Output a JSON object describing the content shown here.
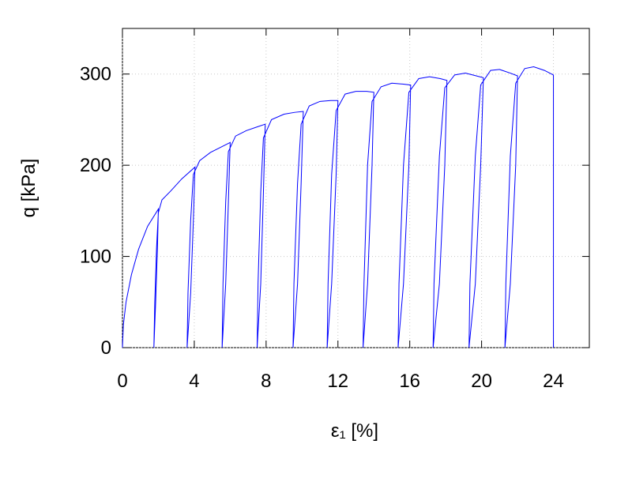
{
  "chart_data": {
    "type": "line",
    "xlabel": "ε₁ [%]",
    "ylabel": "q [kPa]",
    "color": "#0000ff",
    "xlim": [
      0,
      26
    ],
    "ylim": [
      0,
      350
    ],
    "xticks": [
      0,
      4,
      8,
      12,
      16,
      20,
      24
    ],
    "yticks": [
      0,
      100,
      200,
      300
    ],
    "grid": true,
    "x": [
      0,
      0.05,
      0.2,
      0.5,
      0.9,
      1.4,
      2.0,
      1.95,
      1.85,
      1.75,
      1.8,
      1.9,
      2.0,
      2.2,
      2.7,
      3.3,
      4.04,
      3.95,
      3.8,
      3.6,
      3.65,
      3.8,
      3.95,
      4.3,
      4.9,
      5.5,
      6.0,
      5.9,
      5.75,
      5.55,
      5.6,
      5.75,
      5.9,
      6.3,
      6.9,
      7.5,
      7.95,
      7.85,
      7.7,
      7.5,
      7.55,
      7.7,
      7.85,
      8.3,
      9.0,
      9.6,
      10.07,
      9.95,
      9.75,
      9.5,
      9.55,
      9.75,
      9.95,
      10.4,
      11.0,
      11.6,
      12.0,
      11.9,
      11.65,
      11.4,
      11.45,
      11.65,
      11.9,
      12.4,
      13.0,
      13.6,
      14.0,
      13.9,
      13.65,
      13.4,
      13.45,
      13.65,
      13.9,
      14.4,
      15.0,
      15.6,
      16.05,
      15.95,
      15.65,
      15.35,
      15.4,
      15.65,
      15.95,
      16.5,
      17.1,
      17.7,
      18.07,
      17.95,
      17.65,
      17.3,
      17.35,
      17.65,
      17.95,
      18.5,
      19.1,
      19.7,
      20.1,
      19.95,
      19.65,
      19.3,
      19.35,
      19.65,
      19.95,
      20.5,
      21.0,
      21.6,
      22.0,
      21.9,
      21.6,
      21.3,
      21.35,
      21.6,
      21.9,
      22.4,
      22.9,
      23.5,
      24.0,
      24.0
    ],
    "values": [
      0,
      25,
      50,
      80,
      108,
      133,
      152,
      110,
      50,
      0,
      50,
      110,
      148,
      162,
      172,
      185,
      198,
      140,
      60,
      0,
      60,
      140,
      190,
      205,
      214,
      220,
      225,
      160,
      70,
      0,
      70,
      160,
      215,
      232,
      238,
      242,
      245,
      170,
      70,
      0,
      70,
      170,
      230,
      250,
      256,
      258,
      259,
      180,
      70,
      0,
      70,
      180,
      245,
      265,
      270,
      271,
      271,
      190,
      70,
      0,
      70,
      190,
      260,
      278,
      281,
      281,
      280,
      200,
      70,
      0,
      70,
      200,
      270,
      286,
      290,
      289,
      288,
      200,
      70,
      0,
      70,
      200,
      280,
      295,
      297,
      295,
      293,
      200,
      70,
      0,
      70,
      210,
      285,
      299,
      301,
      298,
      296,
      200,
      70,
      0,
      70,
      210,
      288,
      304,
      305,
      301,
      298,
      200,
      70,
      0,
      70,
      210,
      290,
      306,
      308,
      304,
      299,
      0
    ]
  }
}
